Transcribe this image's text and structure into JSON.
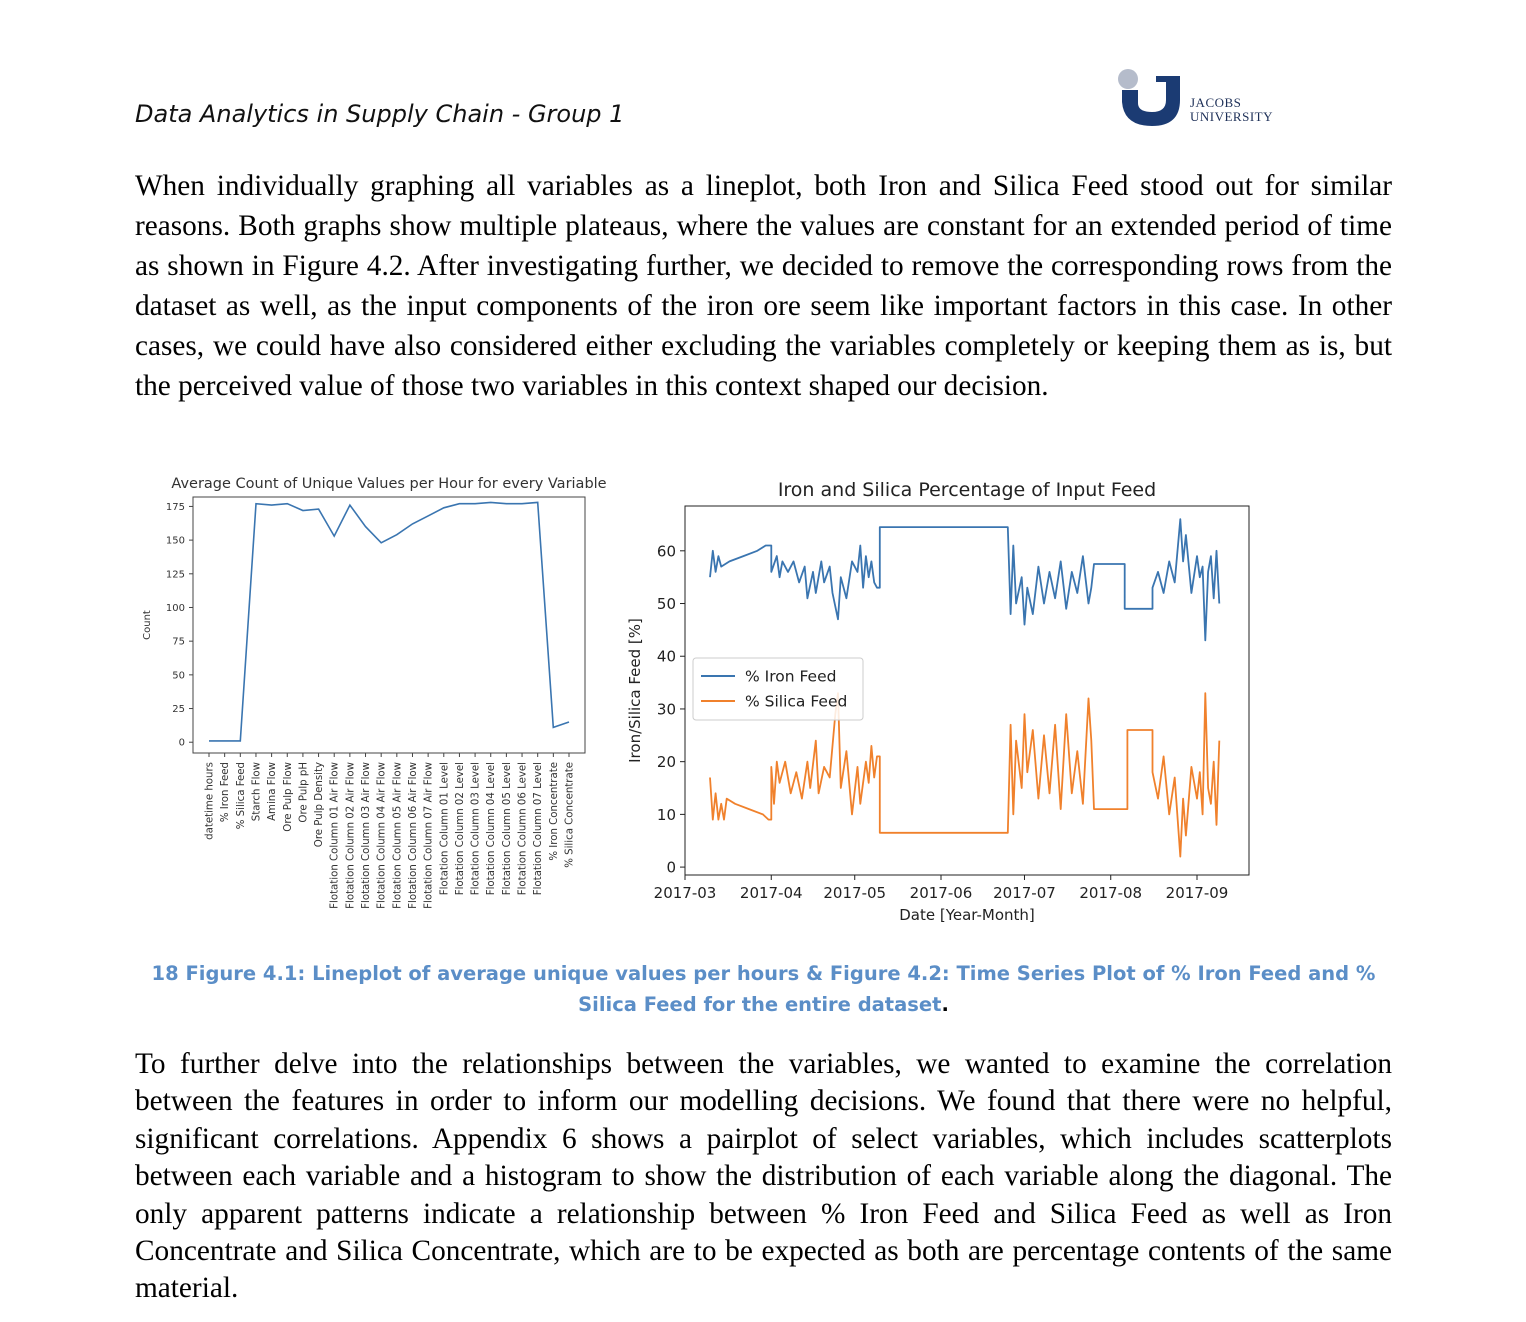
{
  "header": {
    "title": "Data Analytics in Supply Chain - Group 1",
    "logo_line1": "JACOBS",
    "logo_line2": "UNIVERSITY"
  },
  "paragraph1": "When individually graphing all variables as a lineplot, both Iron and Silica Feed stood out for similar reasons. Both graphs show multiple plateaus, where the values are constant for an extended period of time as shown in Figure 4.2. After investigating further, we decided to remove the corresponding rows from the dataset as well, as the input components of the iron ore seem like important factors in this case. In other cases, we could have also considered either excluding the variables completely or keeping them as is, but the perceived value of those two variables in this context shaped our decision.",
  "caption": "18 Figure 4.1: Lineplot of average unique values per hours & Figure 4.2: Time Series Plot of % Iron Feed and % Silica Feed for the entire dataset",
  "caption_end": ".",
  "paragraph2": "To further delve into the relationships between the variables, we wanted to examine the correlation between the features in order to inform our modelling decisions. We found that there were no helpful, significant correlations. Appendix 6 shows a pairplot of select variables, which includes scatterplots between each variable and a histogram to show the distribution of each variable along the diagonal. The only apparent patterns indicate a relationship between % Iron Feed and Silica Feed as well as Iron Concentrate and Silica Concentrate, which are to be expected as both are percentage contents of the same material.",
  "chart_data": [
    {
      "type": "line",
      "title": "Average Count of Unique Values per Hour for every Variable",
      "xlabel": "",
      "ylabel": "Count",
      "ylim": [
        -8,
        182
      ],
      "yticks": [
        0,
        25,
        50,
        75,
        100,
        125,
        150,
        175
      ],
      "grid": false,
      "categories": [
        "datetime hours",
        "% Iron Feed",
        "% Silica Feed",
        "Starch Flow",
        "Amina Flow",
        "Ore Pulp Flow",
        "Ore Pulp pH",
        "Ore Pulp Density",
        "Flotation Column 01 Air Flow",
        "Flotation Column 02 Air Flow",
        "Flotation Column 03 Air Flow",
        "Flotation Column 04 Air Flow",
        "Flotation Column 05 Air Flow",
        "Flotation Column 06 Air Flow",
        "Flotation Column 07 Air Flow",
        "Flotation Column 01 Level",
        "Flotation Column 02 Level",
        "Flotation Column 03 Level",
        "Flotation Column 04 Level",
        "Flotation Column 05 Level",
        "Flotation Column 06 Level",
        "Flotation Column 07 Level",
        "% Iron Concentrate",
        "% Silica Concentrate"
      ],
      "values": [
        1,
        1,
        1,
        177,
        176,
        177,
        172,
        173,
        153,
        176,
        160,
        148,
        154,
        162,
        168,
        174,
        177,
        177,
        178,
        177,
        177,
        178,
        11,
        15
      ]
    },
    {
      "type": "line",
      "title": "Iron and Silica Percentage of Input Feed",
      "xlabel": "Date [Year-Month]",
      "ylabel": "Iron/Silica Feed [%]",
      "ylim": [
        -1.5,
        68.5
      ],
      "yticks": [
        0,
        10,
        20,
        30,
        40,
        50,
        60
      ],
      "xticks": [
        "2017-03",
        "2017-04",
        "2017-05",
        "2017-06",
        "2017-07",
        "2017-08",
        "2017-09"
      ],
      "grid": false,
      "legend": "center-left",
      "series": [
        {
          "name": "% Iron Feed",
          "color": "#3a75b0",
          "points": [
            [
              "2017-03-10",
              55
            ],
            [
              "2017-03-11",
              60
            ],
            [
              "2017-03-12",
              56
            ],
            [
              "2017-03-13",
              59
            ],
            [
              "2017-03-14",
              57
            ],
            [
              "2017-03-17",
              58
            ],
            [
              "2017-03-22",
              59
            ],
            [
              "2017-03-27",
              60
            ],
            [
              "2017-03-30",
              61
            ],
            [
              "2017-04-01",
              61
            ],
            [
              "2017-04-01",
              56
            ],
            [
              "2017-04-03",
              59
            ],
            [
              "2017-04-04",
              55
            ],
            [
              "2017-04-05",
              58
            ],
            [
              "2017-04-07",
              56
            ],
            [
              "2017-04-09",
              58
            ],
            [
              "2017-04-11",
              54
            ],
            [
              "2017-04-13",
              57
            ],
            [
              "2017-04-14",
              51
            ],
            [
              "2017-04-16",
              56
            ],
            [
              "2017-04-17",
              52
            ],
            [
              "2017-04-19",
              58
            ],
            [
              "2017-04-20",
              54
            ],
            [
              "2017-04-22",
              57
            ],
            [
              "2017-04-23",
              52
            ],
            [
              "2017-04-25",
              47
            ],
            [
              "2017-04-26",
              55
            ],
            [
              "2017-04-28",
              51
            ],
            [
              "2017-04-30",
              58
            ],
            [
              "2017-05-02",
              56
            ],
            [
              "2017-05-03",
              61
            ],
            [
              "2017-05-04",
              53
            ],
            [
              "2017-05-05",
              59
            ],
            [
              "2017-05-06",
              55
            ],
            [
              "2017-05-07",
              58
            ],
            [
              "2017-05-08",
              54
            ],
            [
              "2017-05-09",
              53
            ],
            [
              "2017-05-10",
              53
            ],
            [
              "2017-05-10",
              64.5
            ],
            [
              "2017-06-25",
              64.5
            ],
            [
              "2017-06-26",
              48
            ],
            [
              "2017-06-27",
              61
            ],
            [
              "2017-06-28",
              50
            ],
            [
              "2017-06-30",
              55
            ],
            [
              "2017-07-01",
              46
            ],
            [
              "2017-07-02",
              53
            ],
            [
              "2017-07-04",
              48
            ],
            [
              "2017-07-06",
              57
            ],
            [
              "2017-07-08",
              50
            ],
            [
              "2017-07-10",
              56
            ],
            [
              "2017-07-12",
              51
            ],
            [
              "2017-07-14",
              58
            ],
            [
              "2017-07-16",
              49
            ],
            [
              "2017-07-18",
              56
            ],
            [
              "2017-07-20",
              52
            ],
            [
              "2017-07-22",
              59
            ],
            [
              "2017-07-24",
              50
            ],
            [
              "2017-07-25",
              53
            ],
            [
              "2017-07-26",
              57.5
            ],
            [
              "2017-08-06",
              57.5
            ],
            [
              "2017-08-06",
              49
            ],
            [
              "2017-08-16",
              49
            ],
            [
              "2017-08-16",
              53
            ],
            [
              "2017-08-18",
              56
            ],
            [
              "2017-08-20",
              52
            ],
            [
              "2017-08-22",
              58
            ],
            [
              "2017-08-24",
              54
            ],
            [
              "2017-08-26",
              66
            ],
            [
              "2017-08-27",
              58
            ],
            [
              "2017-08-28",
              63
            ],
            [
              "2017-08-30",
              52
            ],
            [
              "2017-09-01",
              59
            ],
            [
              "2017-09-02",
              55
            ],
            [
              "2017-09-03",
              57
            ],
            [
              "2017-09-04",
              43
            ],
            [
              "2017-09-05",
              56
            ],
            [
              "2017-09-06",
              59
            ],
            [
              "2017-09-07",
              51
            ],
            [
              "2017-09-08",
              60
            ],
            [
              "2017-09-09",
              50
            ]
          ]
        },
        {
          "name": "% Silica Feed",
          "color": "#f0812c",
          "points": [
            [
              "2017-03-10",
              17
            ],
            [
              "2017-03-11",
              9
            ],
            [
              "2017-03-12",
              14
            ],
            [
              "2017-03-13",
              9
            ],
            [
              "2017-03-14",
              12
            ],
            [
              "2017-03-15",
              9
            ],
            [
              "2017-03-16",
              13
            ],
            [
              "2017-03-19",
              12
            ],
            [
              "2017-03-24",
              11
            ],
            [
              "2017-03-29",
              10
            ],
            [
              "2017-03-31",
              9
            ],
            [
              "2017-04-01",
              9
            ],
            [
              "2017-04-01",
              19
            ],
            [
              "2017-04-02",
              12
            ],
            [
              "2017-04-03",
              20
            ],
            [
              "2017-04-04",
              16
            ],
            [
              "2017-04-06",
              20
            ],
            [
              "2017-04-08",
              14
            ],
            [
              "2017-04-10",
              18
            ],
            [
              "2017-04-12",
              13
            ],
            [
              "2017-04-14",
              20
            ],
            [
              "2017-04-15",
              15
            ],
            [
              "2017-04-17",
              24
            ],
            [
              "2017-04-18",
              14
            ],
            [
              "2017-04-20",
              19
            ],
            [
              "2017-04-22",
              17
            ],
            [
              "2017-04-24",
              29
            ],
            [
              "2017-04-25",
              33
            ],
            [
              "2017-04-26",
              15
            ],
            [
              "2017-04-28",
              22
            ],
            [
              "2017-04-30",
              10
            ],
            [
              "2017-05-02",
              19
            ],
            [
              "2017-05-03",
              12
            ],
            [
              "2017-05-05",
              20
            ],
            [
              "2017-05-06",
              16
            ],
            [
              "2017-05-07",
              23
            ],
            [
              "2017-05-08",
              17
            ],
            [
              "2017-05-09",
              21
            ],
            [
              "2017-05-10",
              21
            ],
            [
              "2017-05-10",
              6.5
            ],
            [
              "2017-06-25",
              6.5
            ],
            [
              "2017-06-26",
              27
            ],
            [
              "2017-06-27",
              10
            ],
            [
              "2017-06-28",
              24
            ],
            [
              "2017-06-30",
              15
            ],
            [
              "2017-07-01",
              29
            ],
            [
              "2017-07-02",
              18
            ],
            [
              "2017-07-04",
              26
            ],
            [
              "2017-07-06",
              13
            ],
            [
              "2017-07-08",
              25
            ],
            [
              "2017-07-10",
              14
            ],
            [
              "2017-07-12",
              27
            ],
            [
              "2017-07-14",
              11
            ],
            [
              "2017-07-16",
              29
            ],
            [
              "2017-07-18",
              14
            ],
            [
              "2017-07-20",
              22
            ],
            [
              "2017-07-22",
              12
            ],
            [
              "2017-07-24",
              32
            ],
            [
              "2017-07-25",
              24
            ],
            [
              "2017-07-26",
              11
            ],
            [
              "2017-08-07",
              11
            ],
            [
              "2017-08-07",
              26
            ],
            [
              "2017-08-16",
              26
            ],
            [
              "2017-08-16",
              18
            ],
            [
              "2017-08-18",
              13
            ],
            [
              "2017-08-20",
              21
            ],
            [
              "2017-08-22",
              10
            ],
            [
              "2017-08-24",
              17
            ],
            [
              "2017-08-26",
              2
            ],
            [
              "2017-08-27",
              13
            ],
            [
              "2017-08-28",
              6
            ],
            [
              "2017-08-30",
              19
            ],
            [
              "2017-09-01",
              13
            ],
            [
              "2017-09-02",
              18
            ],
            [
              "2017-09-03",
              10
            ],
            [
              "2017-09-04",
              33
            ],
            [
              "2017-09-05",
              15
            ],
            [
              "2017-09-06",
              12
            ],
            [
              "2017-09-07",
              20
            ],
            [
              "2017-09-08",
              8
            ],
            [
              "2017-09-09",
              24
            ]
          ]
        }
      ]
    }
  ]
}
